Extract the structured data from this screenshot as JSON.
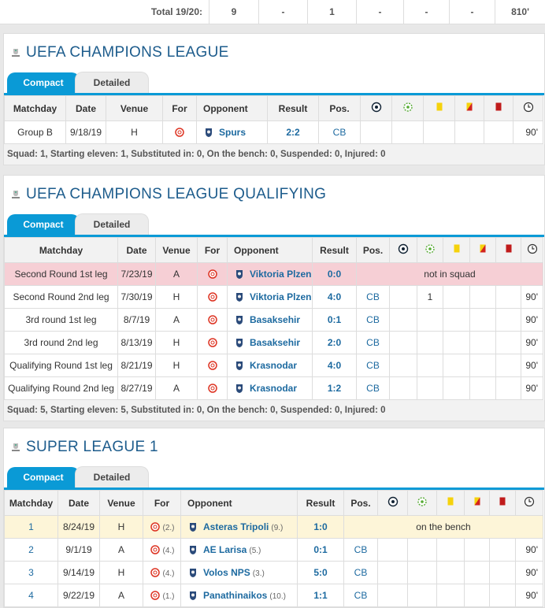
{
  "total_row": {
    "label": "Total 19/20:",
    "cells": [
      "9",
      "-",
      "1",
      "-",
      "-",
      "-",
      "810'"
    ]
  },
  "sections": [
    {
      "title": "UEFA CHAMPIONS LEAGUE",
      "tabs": [
        "Compact",
        "Detailed"
      ],
      "headers": [
        "Matchday",
        "Date",
        "Venue",
        "For",
        "Opponent",
        "Result",
        "Pos."
      ],
      "rows": [
        {
          "matchday": "Group B",
          "date": "9/18/19",
          "venue": "H",
          "opponent": "Spurs",
          "result": "2:2",
          "pos": "CB",
          "minutes": "90'"
        }
      ],
      "summary": "Squad: 1, Starting eleven: 1, Substituted in: 0, On the bench: 0, Suspended: 0, Injured: 0"
    },
    {
      "title": "UEFA CHAMPIONS LEAGUE QUALIFYING",
      "tabs": [
        "Compact",
        "Detailed"
      ],
      "headers": [
        "Matchday",
        "Date",
        "Venue",
        "For",
        "Opponent",
        "Result",
        "Pos."
      ],
      "rows": [
        {
          "matchday": "Second Round 1st leg",
          "date": "7/23/19",
          "venue": "A",
          "opponent": "Viktoria Plzen",
          "result": "0:0",
          "note": "not in squad"
        },
        {
          "matchday": "Second Round 2nd leg",
          "date": "7/30/19",
          "venue": "H",
          "opponent": "Viktoria Plzen",
          "result": "4:0",
          "pos": "CB",
          "assists": "1",
          "minutes": "90'"
        },
        {
          "matchday": "3rd round 1st leg",
          "date": "8/7/19",
          "venue": "A",
          "opponent": "Basaksehir",
          "result": "0:1",
          "pos": "CB",
          "minutes": "90'"
        },
        {
          "matchday": "3rd round 2nd leg",
          "date": "8/13/19",
          "venue": "H",
          "opponent": "Basaksehir",
          "result": "2:0",
          "pos": "CB",
          "minutes": "90'"
        },
        {
          "matchday": "Qualifying Round 1st leg",
          "date": "8/21/19",
          "venue": "H",
          "opponent": "Krasnodar",
          "result": "4:0",
          "pos": "CB",
          "minutes": "90'"
        },
        {
          "matchday": "Qualifying Round 2nd leg",
          "date": "8/27/19",
          "venue": "A",
          "opponent": "Krasnodar",
          "result": "1:2",
          "pos": "CB",
          "minutes": "90'"
        }
      ],
      "summary": "Squad: 5, Starting eleven: 5, Substituted in: 0, On the bench: 0, Suspended: 0, Injured: 0"
    },
    {
      "title": "SUPER LEAGUE 1",
      "tabs": [
        "Compact",
        "Detailed"
      ],
      "headers": [
        "Matchday",
        "Date",
        "Venue",
        "For",
        "Opponent",
        "Result",
        "Pos."
      ],
      "rows": [
        {
          "matchday": "1",
          "date": "8/24/19",
          "venue": "H",
          "for_rank": "(2.)",
          "opponent": "Asteras Tripoli",
          "opp_rank": "(9.)",
          "result": "1:0",
          "note": "on the bench"
        },
        {
          "matchday": "2",
          "date": "9/1/19",
          "venue": "A",
          "for_rank": "(4.)",
          "opponent": "AE Larisa",
          "opp_rank": "(5.)",
          "result": "0:1",
          "pos": "CB",
          "minutes": "90'"
        },
        {
          "matchday": "3",
          "date": "9/14/19",
          "venue": "H",
          "for_rank": "(4.)",
          "opponent": "Volos NPS",
          "opp_rank": "(3.)",
          "result": "5:0",
          "pos": "CB",
          "minutes": "90'"
        },
        {
          "matchday": "4",
          "date": "9/22/19",
          "venue": "A",
          "for_rank": "(1.)",
          "opponent": "Panathinaikos",
          "opp_rank": "(10.)",
          "result": "1:1",
          "pos": "CB",
          "minutes": "90'"
        }
      ]
    }
  ]
}
